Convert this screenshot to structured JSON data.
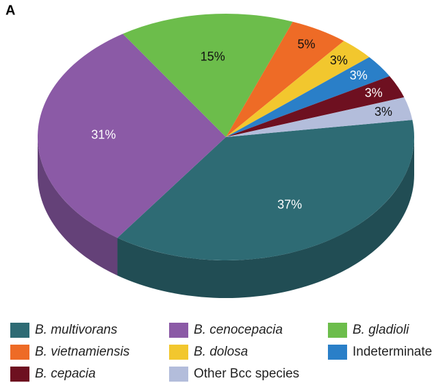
{
  "chart_data": {
    "type": "pie",
    "panel_label": "A",
    "categories": [
      "B. multivorans",
      "B. cenocepacia",
      "B. gladioli",
      "B. vietnamiensis",
      "B. dolosa",
      "Indeterminate",
      "B. cepacia",
      "Other Bcc species"
    ],
    "values": [
      37,
      31,
      15,
      5,
      3,
      3,
      3,
      3
    ],
    "value_labels": [
      "37%",
      "31%",
      "15%",
      "5%",
      "3%",
      "3%",
      "3%",
      "3%"
    ],
    "colors": [
      "#2e6b74",
      "#8b5aa6",
      "#6cbd4b",
      "#ee6b26",
      "#f2c72e",
      "#2a7fc8",
      "#6e1020",
      "#b3bddb"
    ],
    "legend": "bottom"
  }
}
